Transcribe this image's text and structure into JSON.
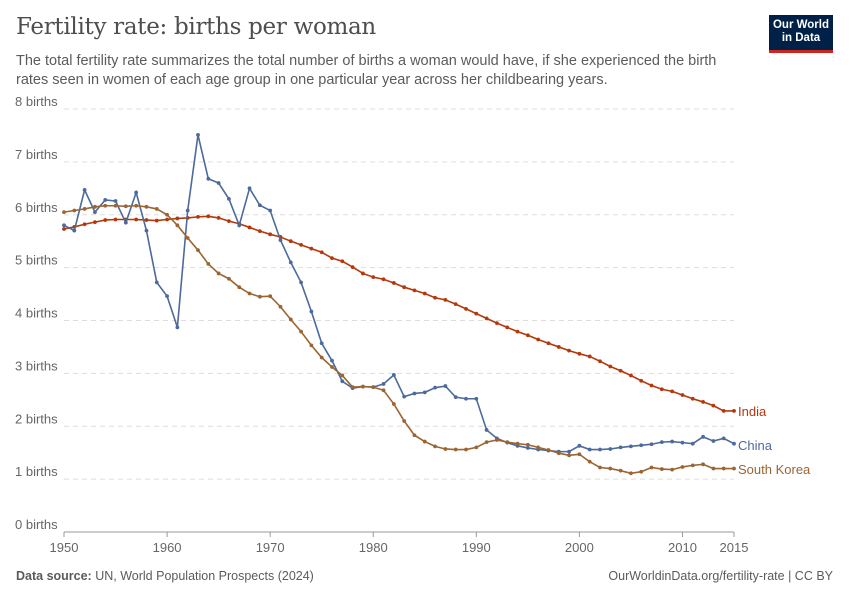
{
  "header": {
    "title": "Fertility rate: births per woman",
    "subtitle": "The total fertility rate summarizes the total number of births a woman would have, if she experienced the birth rates seen in women of each age group in one particular year across her childbearing years.",
    "logo_text": "Our World in Data"
  },
  "footer": {
    "source_label": "Data source:",
    "source": "UN, World Population Prospects (2024)",
    "link": "OurWorldinData.org/fertility-rate | CC BY"
  },
  "chart_data": {
    "type": "line",
    "title": "Fertility rate: births per woman",
    "xlabel": "",
    "ylabel": "",
    "xlim": [
      1950,
      2015
    ],
    "ylim": [
      0,
      8
    ],
    "grid": "horizontal dashed",
    "legend": "inline-right",
    "x_ticks": [
      "1950",
      "1960",
      "1970",
      "1980",
      "1990",
      "2000",
      "2010",
      "2015"
    ],
    "y_ticks": [
      "0 births",
      "1 births",
      "2 births",
      "3 births",
      "4 births",
      "5 births",
      "6 births",
      "7 births",
      "8 births"
    ],
    "x_start": 1950,
    "series": [
      {
        "name": "India",
        "color": "#b5380c",
        "values": [
          5.73,
          5.77,
          5.82,
          5.86,
          5.9,
          5.91,
          5.91,
          5.91,
          5.9,
          5.89,
          5.91,
          5.93,
          5.94,
          5.96,
          5.97,
          5.94,
          5.88,
          5.83,
          5.76,
          5.69,
          5.63,
          5.58,
          5.5,
          5.43,
          5.36,
          5.29,
          5.18,
          5.12,
          5.01,
          4.89,
          4.82,
          4.78,
          4.71,
          4.63,
          4.57,
          4.51,
          4.43,
          4.39,
          4.31,
          4.22,
          4.13,
          4.04,
          3.95,
          3.87,
          3.79,
          3.72,
          3.64,
          3.57,
          3.5,
          3.43,
          3.37,
          3.32,
          3.23,
          3.13,
          3.05,
          2.96,
          2.86,
          2.77,
          2.7,
          2.66,
          2.59,
          2.52,
          2.46,
          2.39,
          2.29,
          2.29
        ]
      },
      {
        "name": "China",
        "color": "#4c6a9c",
        "values": [
          5.8,
          5.7,
          6.47,
          6.05,
          6.28,
          6.26,
          5.85,
          6.42,
          5.7,
          4.72,
          4.46,
          3.87,
          6.08,
          7.51,
          6.68,
          6.6,
          6.3,
          5.8,
          6.5,
          6.18,
          6.08,
          5.52,
          5.1,
          4.72,
          4.17,
          3.57,
          3.24,
          2.85,
          2.72,
          2.75,
          2.74,
          2.8,
          2.97,
          2.56,
          2.62,
          2.64,
          2.73,
          2.76,
          2.55,
          2.52,
          2.52,
          1.93,
          1.77,
          1.69,
          1.63,
          1.59,
          1.56,
          1.54,
          1.52,
          1.52,
          1.63,
          1.56,
          1.56,
          1.57,
          1.6,
          1.62,
          1.64,
          1.66,
          1.7,
          1.71,
          1.69,
          1.67,
          1.8,
          1.72,
          1.77,
          1.67
        ]
      },
      {
        "name": "South Korea",
        "color": "#9a6533",
        "values": [
          6.05,
          6.08,
          6.11,
          6.15,
          6.17,
          6.17,
          6.16,
          6.17,
          6.15,
          6.11,
          6.0,
          5.8,
          5.56,
          5.33,
          5.07,
          4.89,
          4.79,
          4.63,
          4.51,
          4.45,
          4.46,
          4.26,
          4.02,
          3.79,
          3.53,
          3.3,
          3.12,
          2.96,
          2.74,
          2.75,
          2.74,
          2.68,
          2.42,
          2.1,
          1.83,
          1.71,
          1.62,
          1.57,
          1.56,
          1.56,
          1.6,
          1.7,
          1.74,
          1.7,
          1.67,
          1.65,
          1.6,
          1.55,
          1.49,
          1.45,
          1.47,
          1.33,
          1.22,
          1.2,
          1.16,
          1.11,
          1.14,
          1.22,
          1.19,
          1.18,
          1.23,
          1.26,
          1.28,
          1.2,
          1.2,
          1.2
        ]
      }
    ]
  }
}
